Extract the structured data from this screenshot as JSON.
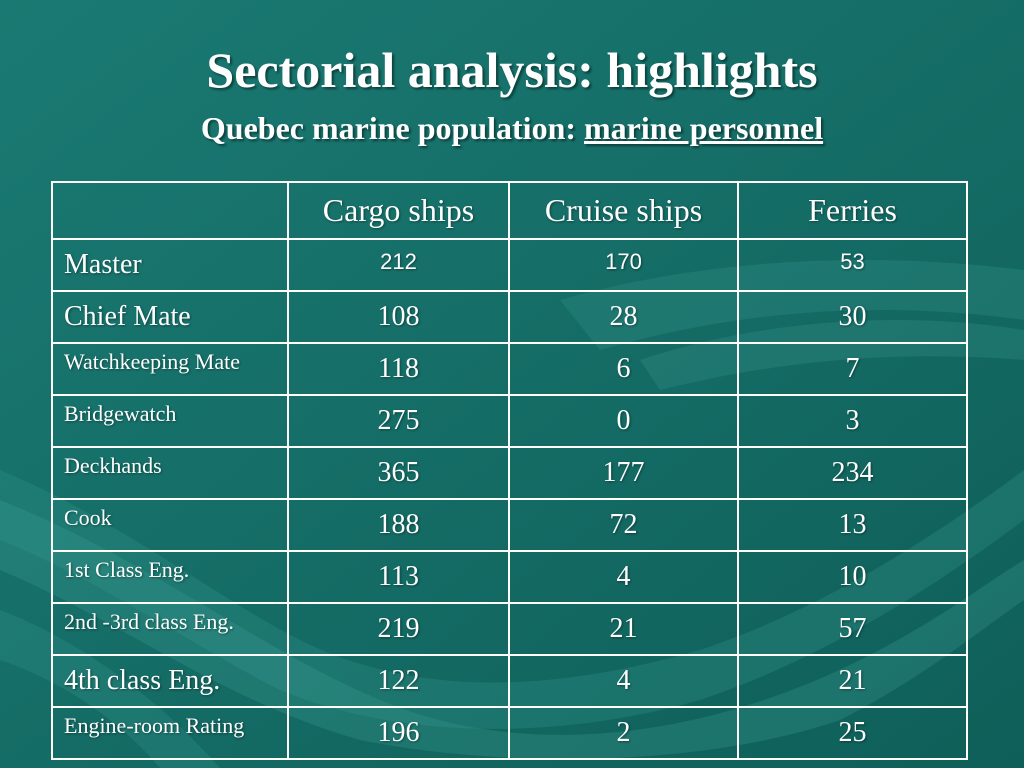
{
  "slide": {
    "title": "Sectorial analysis: highlights",
    "subtitle_prefix": "Quebec marine population: ",
    "subtitle_emphasis": "marine personnel"
  },
  "table": {
    "columns": [
      "",
      "Cargo ships",
      "Cruise ships",
      "Ferries"
    ],
    "rows": [
      {
        "label": "Master",
        "cargo": "212",
        "cruise": "170",
        "ferries": "53"
      },
      {
        "label": "Chief Mate",
        "cargo": "108",
        "cruise": "28",
        "ferries": "30"
      },
      {
        "label": "Watchkeeping Mate",
        "cargo": "118",
        "cruise": "6",
        "ferries": "7"
      },
      {
        "label": "Bridgewatch",
        "cargo": "275",
        "cruise": "0",
        "ferries": "3"
      },
      {
        "label": "Deckhands",
        "cargo": "365",
        "cruise": "177",
        "ferries": "234"
      },
      {
        "label": "Cook",
        "cargo": "188",
        "cruise": "72",
        "ferries": "13"
      },
      {
        "label": "1st Class Eng.",
        "cargo": "113",
        "cruise": "4",
        "ferries": "10"
      },
      {
        "label": "2nd -3rd class Eng.",
        "cargo": "219",
        "cruise": "21",
        "ferries": "57"
      },
      {
        "label": "4th class Eng.",
        "cargo": "122",
        "cruise": "4",
        "ferries": "21"
      },
      {
        "label": "Engine-room Rating",
        "cargo": "196",
        "cruise": "2",
        "ferries": "25"
      }
    ]
  },
  "colors": {
    "background": "#136e67",
    "wave": "#2a8d86",
    "text": "#ffffff"
  }
}
